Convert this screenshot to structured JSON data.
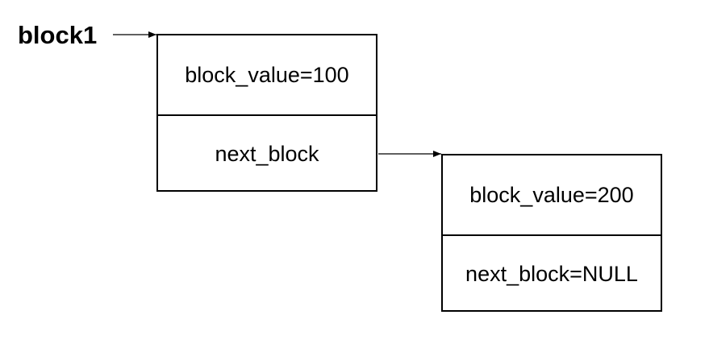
{
  "head_pointer": {
    "label": "block1"
  },
  "blocks": [
    {
      "value_field": "block_value=100",
      "next_field": "next_block"
    },
    {
      "value_field": "block_value=200",
      "next_field": "next_block=NULL"
    }
  ],
  "colors": {
    "stroke": "#000000",
    "background": "#ffffff"
  }
}
